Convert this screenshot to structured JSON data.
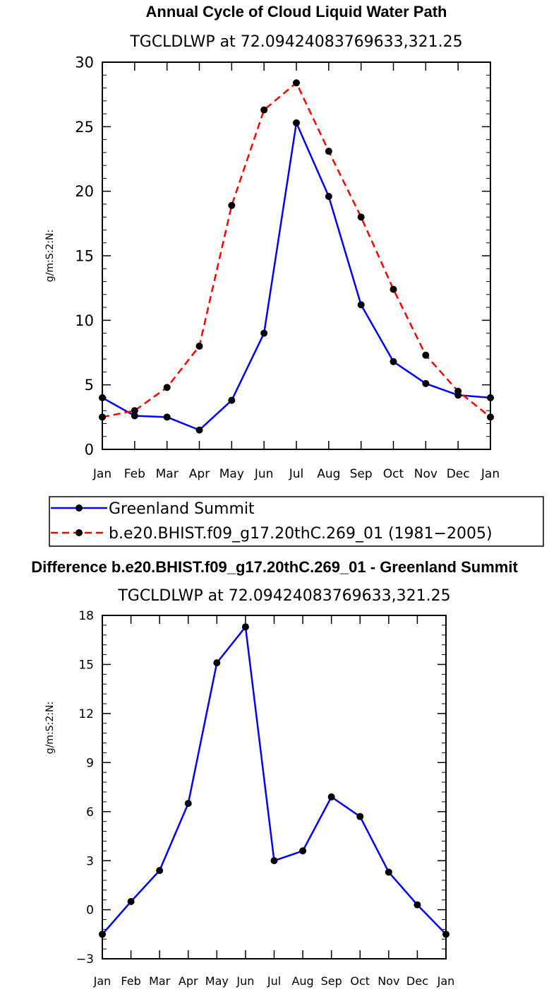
{
  "colors": {
    "series1": "#0000ff",
    "series2": "#ff0000",
    "marker": "#000000"
  },
  "legend": {
    "items": [
      "Greenland Summit",
      "b.e20.BHIST.f09_g17.20thC.269_01 (1981−2005)"
    ]
  },
  "chart_data": [
    {
      "type": "line",
      "title": "Annual Cycle of Cloud Liquid Water Path",
      "subtitle": "TGCLDLWP  at  72.09424083769633,321.25",
      "xlabel": "",
      "ylabel": "g/m:S:2:N:",
      "categories": [
        "Jan",
        "Feb",
        "Mar",
        "Apr",
        "May",
        "Jun",
        "Jul",
        "Aug",
        "Sep",
        "Oct",
        "Nov",
        "Dec",
        "Jan"
      ],
      "ylim": [
        0,
        30
      ],
      "yticks": [
        0,
        5,
        10,
        15,
        20,
        25,
        30
      ],
      "ytick_labels": [
        "0",
        "5",
        "10",
        "15",
        "20",
        "25",
        "30"
      ],
      "series": [
        {
          "name": "Greenland Summit",
          "style": "solid",
          "values": [
            4.0,
            2.6,
            2.5,
            1.5,
            3.8,
            9.0,
            25.3,
            19.6,
            11.2,
            6.8,
            5.1,
            4.2,
            4.0
          ]
        },
        {
          "name": "b.e20.BHIST.f09_g17.20thC.269_01 (1981−2005)",
          "style": "dashed",
          "values": [
            2.5,
            3.0,
            4.8,
            8.0,
            18.9,
            26.3,
            28.4,
            23.1,
            18.0,
            12.4,
            7.3,
            4.5,
            2.5
          ]
        }
      ]
    },
    {
      "type": "line",
      "title": "Difference b.e20.BHIST.f09_g17.20thC.269_01 - Greenland Summit",
      "subtitle": "TGCLDLWP  at  72.09424083769633,321.25",
      "xlabel": "",
      "ylabel": "g/m:S:2:N:",
      "categories": [
        "Jan",
        "Feb",
        "Mar",
        "Apr",
        "May",
        "Jun",
        "Jul",
        "Aug",
        "Sep",
        "Oct",
        "Nov",
        "Dec",
        "Jan"
      ],
      "ylim": [
        -3,
        18
      ],
      "yticks": [
        -3,
        0,
        3,
        6,
        9,
        12,
        15,
        18
      ],
      "ytick_labels": [
        "−3",
        "0",
        "3",
        "6",
        "9",
        "12",
        "15",
        "18"
      ],
      "series": [
        {
          "name": "Difference",
          "style": "solid",
          "values": [
            -1.5,
            0.5,
            2.4,
            6.5,
            15.1,
            17.3,
            3.0,
            3.6,
            6.9,
            5.7,
            2.3,
            0.3,
            -1.5
          ]
        }
      ]
    }
  ]
}
